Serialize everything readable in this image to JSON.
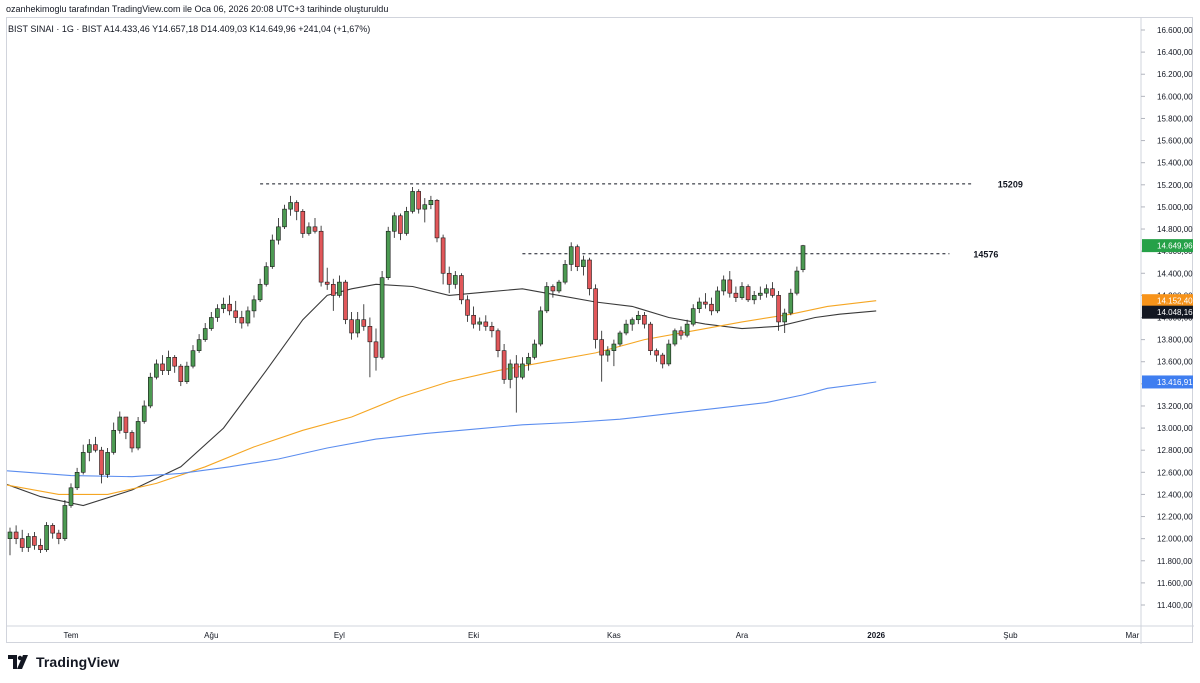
{
  "caption": "ozanhekimoglu tarafından TradingView.com ile Oca 06, 2026 20:08 UTC+3 tarihinde oluşturuldu",
  "legend": "BIST SINAI · 1G · BIST  A14.433,46  Y14.657,18  D14.409,03  K14.649,96  +241,04 (+1,67%)",
  "brand": "TradingView",
  "colors": {
    "up": "#4c9a52",
    "down": "#e1575a",
    "ma_black": "#3a3a3a",
    "ma_orange": "#f5a623",
    "ma_blue": "#5b8def",
    "label_green": "#26a148",
    "label_orange": "#f7931a",
    "label_black": "#131722",
    "label_blue": "#3f7ef0"
  },
  "chart_data": {
    "type": "candlestick",
    "ylim": [
      11200,
      16800
    ],
    "y_ticks": [
      "16.600,00",
      "16.400,00",
      "16.200,00",
      "16.000,00",
      "15.800,00",
      "15.600,00",
      "15.400,00",
      "15.200,00",
      "15.000,00",
      "14.800,00",
      "14.600,00",
      "14.400,00",
      "14.200,00",
      "14.000,00",
      "13.800,00",
      "13.600,00",
      "13.400,00",
      "13.200,00",
      "13.000,00",
      "12.800,00",
      "12.600,00",
      "12.400,00",
      "12.200,00",
      "12.000,00",
      "11.800,00",
      "11.600,00",
      "11.400,00"
    ],
    "y_tick_values": [
      16600,
      16400,
      16200,
      16000,
      15800,
      15600,
      15400,
      15200,
      15000,
      14800,
      14600,
      14400,
      14200,
      14000,
      13800,
      13600,
      13400,
      13200,
      13000,
      12800,
      12600,
      12400,
      12200,
      12000,
      11800,
      11600,
      11400
    ],
    "x_labels": [
      {
        "label": "Tem",
        "bar": 10
      },
      {
        "label": "Ağu",
        "bar": 33
      },
      {
        "label": "Eyl",
        "bar": 54
      },
      {
        "label": "Eki",
        "bar": 76
      },
      {
        "label": "Kas",
        "bar": 99
      },
      {
        "label": "Ara",
        "bar": 120
      },
      {
        "label": "2026",
        "bar": 142
      },
      {
        "label": "Şub",
        "bar": 164
      },
      {
        "label": "Mar",
        "bar": 184
      }
    ],
    "candles": [
      [
        12000,
        12100,
        11850,
        12060
      ],
      [
        12060,
        12120,
        11950,
        12000
      ],
      [
        12000,
        12080,
        11880,
        11920
      ],
      [
        11920,
        12050,
        11880,
        12020
      ],
      [
        12020,
        12060,
        11900,
        11940
      ],
      [
        11940,
        12000,
        11870,
        11900
      ],
      [
        11900,
        12150,
        11880,
        12120
      ],
      [
        12120,
        12140,
        12000,
        12050
      ],
      [
        12050,
        12080,
        11950,
        12000
      ],
      [
        12000,
        12350,
        11980,
        12300
      ],
      [
        12300,
        12500,
        12280,
        12460
      ],
      [
        12460,
        12640,
        12440,
        12600
      ],
      [
        12600,
        12850,
        12580,
        12780
      ],
      [
        12780,
        12900,
        12700,
        12850
      ],
      [
        12850,
        12920,
        12780,
        12800
      ],
      [
        12800,
        12830,
        12500,
        12580
      ],
      [
        12580,
        12820,
        12550,
        12780
      ],
      [
        12780,
        13050,
        12760,
        12980
      ],
      [
        12980,
        13150,
        12950,
        13100
      ],
      [
        13100,
        13080,
        12900,
        12960
      ],
      [
        12960,
        12980,
        12780,
        12820
      ],
      [
        12820,
        13100,
        12800,
        13060
      ],
      [
        13060,
        13250,
        13040,
        13200
      ],
      [
        13200,
        13500,
        13180,
        13460
      ],
      [
        13460,
        13620,
        13440,
        13580
      ],
      [
        13580,
        13660,
        13480,
        13520
      ],
      [
        13520,
        13700,
        13480,
        13640
      ],
      [
        13640,
        13660,
        13500,
        13560
      ],
      [
        13560,
        13580,
        13380,
        13420
      ],
      [
        13420,
        13600,
        13400,
        13560
      ],
      [
        13560,
        13750,
        13540,
        13700
      ],
      [
        13700,
        13850,
        13680,
        13800
      ],
      [
        13800,
        13950,
        13780,
        13900
      ],
      [
        13900,
        14050,
        13880,
        14000
      ],
      [
        14000,
        14120,
        13960,
        14080
      ],
      [
        14080,
        14180,
        14040,
        14120
      ],
      [
        14120,
        14200,
        14020,
        14060
      ],
      [
        14060,
        14150,
        13950,
        14000
      ],
      [
        14000,
        14060,
        13900,
        13950
      ],
      [
        13950,
        14100,
        13920,
        14060
      ],
      [
        14060,
        14200,
        14000,
        14160
      ],
      [
        14160,
        14350,
        14140,
        14300
      ],
      [
        14300,
        14500,
        14280,
        14460
      ],
      [
        14460,
        14750,
        14440,
        14700
      ],
      [
        14700,
        14900,
        14660,
        14820
      ],
      [
        14820,
        15020,
        14800,
        14980
      ],
      [
        14980,
        15100,
        14920,
        15040
      ],
      [
        15040,
        15060,
        14880,
        14960
      ],
      [
        14960,
        14980,
        14720,
        14760
      ],
      [
        14760,
        14860,
        14740,
        14820
      ],
      [
        14820,
        14900,
        14760,
        14780
      ],
      [
        14780,
        14830,
        14280,
        14320
      ],
      [
        14320,
        14450,
        14250,
        14300
      ],
      [
        14300,
        14350,
        14060,
        14200
      ],
      [
        14200,
        14380,
        14180,
        14320
      ],
      [
        14320,
        14340,
        13940,
        13980
      ],
      [
        13980,
        14050,
        13800,
        13860
      ],
      [
        13860,
        14050,
        13820,
        13980
      ],
      [
        13980,
        14120,
        13880,
        13920
      ],
      [
        13920,
        14000,
        13460,
        13780
      ],
      [
        13780,
        13900,
        13520,
        13640
      ],
      [
        13640,
        14420,
        13620,
        14360
      ],
      [
        14360,
        14820,
        14340,
        14780
      ],
      [
        14780,
        14950,
        14720,
        14920
      ],
      [
        14920,
        14940,
        14700,
        14760
      ],
      [
        14760,
        15000,
        14740,
        14960
      ],
      [
        14960,
        15180,
        14940,
        15140
      ],
      [
        15140,
        15160,
        14940,
        14980
      ],
      [
        14980,
        15080,
        14860,
        15020
      ],
      [
        15020,
        15100,
        14980,
        15060
      ],
      [
        15060,
        15070,
        14680,
        14720
      ],
      [
        14720,
        14750,
        14300,
        14400
      ],
      [
        14400,
        14460,
        14220,
        14300
      ],
      [
        14300,
        14420,
        14260,
        14380
      ],
      [
        14380,
        14400,
        14120,
        14160
      ],
      [
        14160,
        14200,
        13960,
        14020
      ],
      [
        14020,
        14100,
        13900,
        13940
      ],
      [
        13940,
        14000,
        13880,
        13960
      ],
      [
        13960,
        14020,
        13880,
        13920
      ],
      [
        13920,
        13960,
        13820,
        13880
      ],
      [
        13880,
        13900,
        13640,
        13700
      ],
      [
        13700,
        13760,
        13400,
        13440
      ],
      [
        13440,
        13620,
        13360,
        13580
      ],
      [
        13580,
        13660,
        13140,
        13460
      ],
      [
        13460,
        13640,
        13440,
        13580
      ],
      [
        13580,
        13680,
        13520,
        13640
      ],
      [
        13640,
        13800,
        13620,
        13760
      ],
      [
        13760,
        14100,
        13740,
        14060
      ],
      [
        14060,
        14320,
        14040,
        14280
      ],
      [
        14280,
        14300,
        14180,
        14240
      ],
      [
        14240,
        14340,
        14220,
        14320
      ],
      [
        14320,
        14520,
        14300,
        14480
      ],
      [
        14480,
        14680,
        14420,
        14640
      ],
      [
        14640,
        14660,
        14420,
        14460
      ],
      [
        14460,
        14560,
        14380,
        14520
      ],
      [
        14520,
        14540,
        14200,
        14260
      ],
      [
        14260,
        14300,
        13720,
        13800
      ],
      [
        13800,
        13880,
        13420,
        13660
      ],
      [
        13660,
        13740,
        13600,
        13700
      ],
      [
        13700,
        13800,
        13560,
        13760
      ],
      [
        13760,
        13880,
        13740,
        13860
      ],
      [
        13860,
        13980,
        13840,
        13940
      ],
      [
        13940,
        14000,
        13880,
        13980
      ],
      [
        13980,
        14060,
        13940,
        14020
      ],
      [
        14020,
        14050,
        13900,
        13940
      ],
      [
        13940,
        13960,
        13660,
        13700
      ],
      [
        13700,
        13720,
        13600,
        13660
      ],
      [
        13660,
        13680,
        13540,
        13580
      ],
      [
        13580,
        13800,
        13560,
        13760
      ],
      [
        13760,
        13900,
        13740,
        13880
      ],
      [
        13880,
        13920,
        13800,
        13840
      ],
      [
        13840,
        13980,
        13820,
        13940
      ],
      [
        13940,
        14120,
        13920,
        14080
      ],
      [
        14080,
        14180,
        14040,
        14140
      ],
      [
        14140,
        14220,
        14080,
        14120
      ],
      [
        14120,
        14180,
        14020,
        14060
      ],
      [
        14060,
        14280,
        14040,
        14240
      ],
      [
        14240,
        14380,
        14200,
        14340
      ],
      [
        14340,
        14420,
        14180,
        14220
      ],
      [
        14220,
        14280,
        14140,
        14180
      ],
      [
        14180,
        14320,
        14160,
        14280
      ],
      [
        14280,
        14300,
        14140,
        14160
      ],
      [
        14160,
        14240,
        14120,
        14200
      ],
      [
        14200,
        14280,
        14160,
        14220
      ],
      [
        14220,
        14300,
        14180,
        14260
      ],
      [
        14260,
        14320,
        14180,
        14200
      ],
      [
        14200,
        14240,
        13880,
        13960
      ],
      [
        13960,
        14080,
        13860,
        14040
      ],
      [
        14040,
        14260,
        14020,
        14220
      ],
      [
        14220,
        14460,
        14200,
        14420
      ],
      [
        14433,
        14657,
        14409,
        14650
      ]
    ],
    "moving_averages": [
      {
        "id": "ma_black",
        "color": "#3a3a3a",
        "points": [
          [
            -2,
            12520
          ],
          [
            5,
            12380
          ],
          [
            12,
            12300
          ],
          [
            20,
            12440
          ],
          [
            28,
            12650
          ],
          [
            35,
            13000
          ],
          [
            42,
            13520
          ],
          [
            48,
            13980
          ],
          [
            52,
            14200
          ],
          [
            56,
            14260
          ],
          [
            60,
            14300
          ],
          [
            66,
            14280
          ],
          [
            72,
            14200
          ],
          [
            78,
            14230
          ],
          [
            84,
            14260
          ],
          [
            90,
            14200
          ],
          [
            96,
            14140
          ],
          [
            102,
            14100
          ],
          [
            108,
            14000
          ],
          [
            114,
            13940
          ],
          [
            120,
            13900
          ],
          [
            126,
            13920
          ],
          [
            132,
            14000
          ],
          [
            136,
            14030
          ],
          [
            142,
            14060
          ]
        ]
      },
      {
        "id": "ma_orange",
        "color": "#f5a623",
        "points": [
          [
            -2,
            12500
          ],
          [
            8,
            12400
          ],
          [
            16,
            12400
          ],
          [
            24,
            12500
          ],
          [
            32,
            12650
          ],
          [
            40,
            12830
          ],
          [
            48,
            12980
          ],
          [
            56,
            13100
          ],
          [
            64,
            13280
          ],
          [
            72,
            13420
          ],
          [
            80,
            13520
          ],
          [
            88,
            13600
          ],
          [
            96,
            13680
          ],
          [
            104,
            13800
          ],
          [
            112,
            13880
          ],
          [
            120,
            13960
          ],
          [
            128,
            14030
          ],
          [
            134,
            14100
          ],
          [
            142,
            14152
          ]
        ]
      },
      {
        "id": "ma_blue",
        "color": "#5b8def",
        "points": [
          [
            -2,
            12620
          ],
          [
            10,
            12570
          ],
          [
            20,
            12560
          ],
          [
            28,
            12590
          ],
          [
            36,
            12650
          ],
          [
            44,
            12720
          ],
          [
            52,
            12820
          ],
          [
            60,
            12900
          ],
          [
            68,
            12950
          ],
          [
            76,
            12990
          ],
          [
            84,
            13030
          ],
          [
            92,
            13050
          ],
          [
            100,
            13080
          ],
          [
            108,
            13130
          ],
          [
            116,
            13180
          ],
          [
            124,
            13230
          ],
          [
            130,
            13300
          ],
          [
            134,
            13360
          ],
          [
            142,
            13417
          ]
        ]
      }
    ],
    "horizontal_levels": [
      {
        "value": 15209,
        "label": "15209",
        "from_bar": 41,
        "to_bar": 158
      },
      {
        "value": 14576,
        "label": "14576",
        "from_bar": 84,
        "to_bar": 154
      }
    ],
    "price_labels": [
      {
        "text": "14.649,96",
        "value": 14650,
        "bg": "#26a148",
        "fg": "#ffffff"
      },
      {
        "text": "14.152,40",
        "value": 14152,
        "bg": "#f7931a",
        "fg": "#ffffff"
      },
      {
        "text": "14.048,16",
        "value": 14048,
        "bg": "#131722",
        "fg": "#ffffff"
      },
      {
        "text": "13.416,91",
        "value": 13417,
        "bg": "#3f7ef0",
        "fg": "#ffffff"
      }
    ]
  }
}
